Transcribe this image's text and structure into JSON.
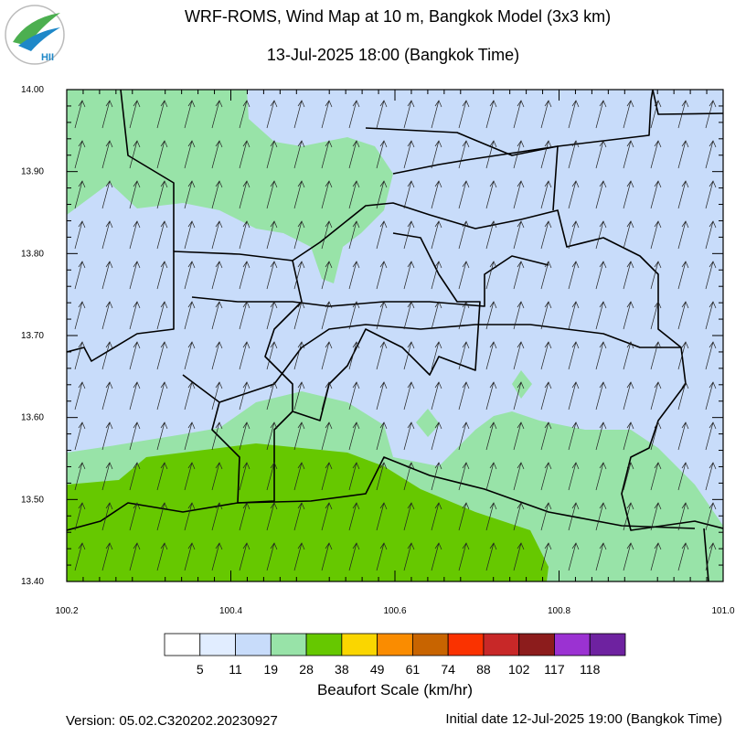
{
  "header": {
    "logo_text": "HII",
    "title": "WRF-ROMS, Wind Map at 10 m, Bangkok Model (3x3 km)",
    "subtitle": "13-Jul-2025 18:00 (Bangkok Time)"
  },
  "map": {
    "xlim": [
      100.2,
      101.0
    ],
    "ylim": [
      13.4,
      14.0
    ],
    "xticks": [
      100.2,
      100.4,
      100.6,
      100.8,
      {
        "value": 101.0,
        "label": "101.0"
      }
    ],
    "yticks": [
      {
        "value": 13.4,
        "label": "13.40"
      },
      {
        "value": 13.5,
        "label": "13.50"
      },
      {
        "value": 13.6,
        "label": "13.60"
      },
      {
        "value": 13.7,
        "label": "13.70"
      },
      {
        "value": 13.8,
        "label": "13.80"
      },
      {
        "value": 13.9,
        "label": "13.90"
      },
      {
        "value": 14.0,
        "label": "14.00"
      }
    ]
  },
  "colorbar": {
    "title": "Beaufort Scale (km/hr)",
    "colors": [
      "#ffffff",
      "#e1edff",
      "#c8dcfa",
      "#98e3a8",
      "#66c800",
      "#fad600",
      "#fa8c00",
      "#c86400",
      "#fa3200",
      "#c82828",
      "#8c1c1c",
      "#9b32d2",
      "#6e22a0"
    ],
    "labels": [
      5,
      11,
      19,
      28,
      38,
      49,
      61,
      74,
      88,
      102,
      117,
      118
    ]
  },
  "footer": {
    "version": "Version: 05.02.C320202.20230927",
    "initial_date": "Initial date 12-Jul-2025 19:00 (Bangkok Time)"
  }
}
